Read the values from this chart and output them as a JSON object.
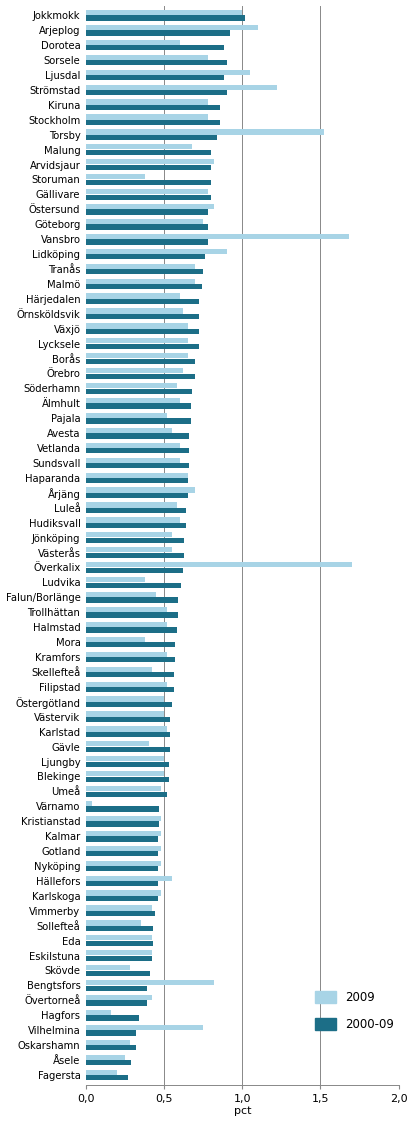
{
  "categories": [
    "Jokkmokk",
    "Arjeplog",
    "Dorotea",
    "Sorsele",
    "Ljusdal",
    "Strömstad",
    "Kiruna",
    "Stockholm",
    "Torsby",
    "Malung",
    "Arvidsjaur",
    "Storuman",
    "Gällivare",
    "Östersund",
    "Göteborg",
    "Vansbro",
    "Lidköping",
    "Tranås",
    "Malmö",
    "Härjedalen",
    "Örnsköldsvik",
    "Växjö",
    "Lycksele",
    "Borås",
    "Örebro",
    "Söderhamn",
    "Älmhult",
    "Pajala",
    "Avesta",
    "Vetlanda",
    "Sundsvall",
    "Haparanda",
    "Årjäng",
    "Luleå",
    "Hudiksvall",
    "Jönköping",
    "Västerås",
    "Överkalix",
    "Ludvika",
    "Falun/Borlänge",
    "Trollhättan",
    "Halmstad",
    "Mora",
    "Kramfors",
    "Skellefteå",
    "Filipstad",
    "Östergötland",
    "Västervik",
    "Karlstad",
    "Gävle",
    "Ljungby",
    "Blekinge",
    "Umeå",
    "Värnamo",
    "Kristianstad",
    "Kalmar",
    "Gotland",
    "Nyköping",
    "Hällefors",
    "Karlskoga",
    "Vimmerby",
    "Sollefteå",
    "Eda",
    "Eskilstuna",
    "Skövde",
    "Bengtsfors",
    "Övertorneå",
    "Hagfors",
    "Vilhelmina",
    "Oskarshamn",
    "Åsele",
    "Fagersta"
  ],
  "values_2009": [
    1.0,
    1.1,
    0.6,
    0.78,
    1.05,
    1.22,
    0.78,
    0.78,
    1.52,
    0.68,
    0.82,
    0.38,
    0.78,
    0.82,
    0.75,
    1.68,
    0.9,
    0.7,
    0.7,
    0.6,
    0.62,
    0.65,
    0.65,
    0.65,
    0.62,
    0.58,
    0.6,
    0.52,
    0.55,
    0.6,
    0.6,
    0.65,
    0.7,
    0.58,
    0.6,
    0.55,
    0.55,
    1.7,
    0.38,
    0.45,
    0.52,
    0.52,
    0.38,
    0.52,
    0.42,
    0.52,
    0.5,
    0.5,
    0.52,
    0.4,
    0.5,
    0.5,
    0.48,
    0.04,
    0.48,
    0.48,
    0.48,
    0.48,
    0.55,
    0.48,
    0.42,
    0.35,
    0.42,
    0.42,
    0.28,
    0.82,
    0.42,
    0.16,
    0.75,
    0.28,
    0.25,
    0.2
  ],
  "values_2000_09": [
    1.02,
    0.92,
    0.88,
    0.9,
    0.88,
    0.9,
    0.86,
    0.86,
    0.84,
    0.8,
    0.8,
    0.8,
    0.8,
    0.78,
    0.78,
    0.78,
    0.76,
    0.75,
    0.74,
    0.72,
    0.72,
    0.72,
    0.72,
    0.7,
    0.7,
    0.68,
    0.67,
    0.67,
    0.66,
    0.66,
    0.66,
    0.65,
    0.65,
    0.64,
    0.64,
    0.63,
    0.63,
    0.62,
    0.61,
    0.59,
    0.59,
    0.58,
    0.57,
    0.57,
    0.56,
    0.56,
    0.55,
    0.54,
    0.54,
    0.54,
    0.53,
    0.53,
    0.52,
    0.47,
    0.47,
    0.46,
    0.46,
    0.46,
    0.46,
    0.46,
    0.44,
    0.43,
    0.43,
    0.42,
    0.41,
    0.39,
    0.39,
    0.34,
    0.32,
    0.32,
    0.29,
    0.27
  ],
  "color_2009": "#a8d4e6",
  "color_2000_09": "#1c6e87",
  "xlim": [
    0,
    2.0
  ],
  "xticks": [
    0.0,
    0.5,
    1.0,
    1.5,
    2.0
  ],
  "xticklabels": [
    "0,0",
    "0,5",
    "1,0",
    "1,5",
    "2,0"
  ],
  "xlabel": "pct",
  "vlines": [
    0.5,
    1.0,
    1.5
  ],
  "legend_2009": "2009",
  "legend_2000_09": "2000-09",
  "bar_height": 0.35,
  "figsize": [
    4.13,
    11.22
  ],
  "dpi": 100
}
